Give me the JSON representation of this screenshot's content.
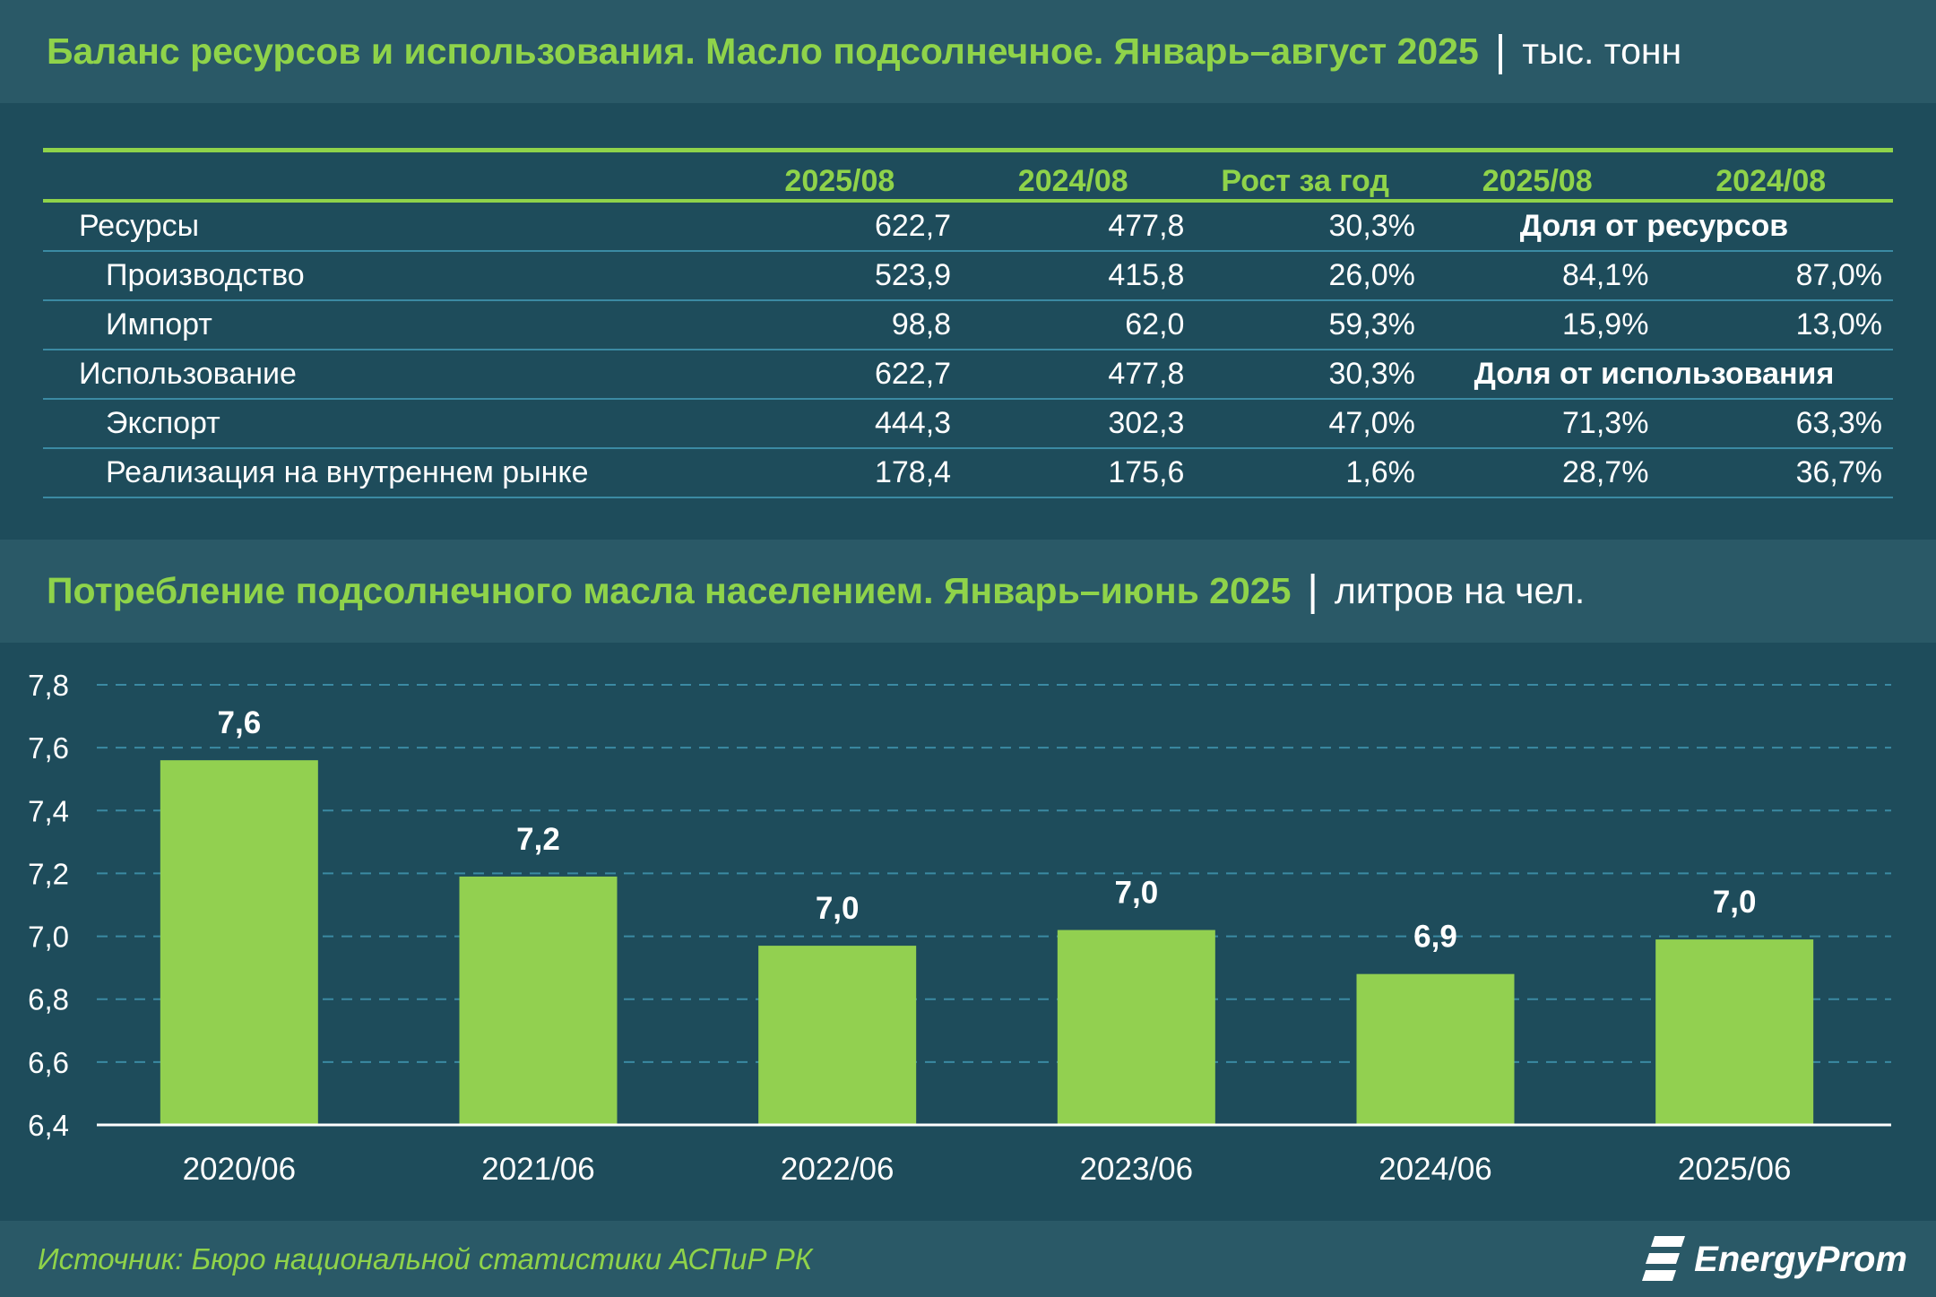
{
  "table_section": {
    "title": "Баланс ресурсов и использования. Масло подсолнечное. Январь–август 2025",
    "separator": "|",
    "unit": "тыс. тонн",
    "headers": [
      "",
      "2025/08",
      "2024/08",
      "Рост за год",
      "2025/08",
      "2024/08"
    ],
    "rows": [
      {
        "label": "Ресурсы",
        "level": 0,
        "v2025": "622,7",
        "v2024": "477,8",
        "growth": "30,3%",
        "share_header": "Доля от ресурсов"
      },
      {
        "label": "Производство",
        "level": 1,
        "v2025": "523,9",
        "v2024": "415,8",
        "growth": "26,0%",
        "share2025": "84,1%",
        "share2024": "87,0%"
      },
      {
        "label": "Импорт",
        "level": 1,
        "v2025": "98,8",
        "v2024": "62,0",
        "growth": "59,3%",
        "share2025": "15,9%",
        "share2024": "13,0%"
      },
      {
        "label": "Использование",
        "level": 0,
        "v2025": "622,7",
        "v2024": "477,8",
        "growth": "30,3%",
        "share_header": "Доля от использования"
      },
      {
        "label": "Экспорт",
        "level": 1,
        "v2025": "444,3",
        "v2024": "302,3",
        "growth": "47,0%",
        "share2025": "71,3%",
        "share2024": "63,3%"
      },
      {
        "label": "Реализация на внутреннем рынке",
        "level": 1,
        "v2025": "178,4",
        "v2024": "175,6",
        "growth": "1,6%",
        "share2025": "28,7%",
        "share2024": "36,7%"
      }
    ]
  },
  "chart_section": {
    "title": "Потребление подсолнечного масла населением. Январь–июнь 2025",
    "separator": "|",
    "unit": "литров на чел."
  },
  "chart_data": {
    "type": "bar",
    "categories": [
      "2020/06",
      "2021/06",
      "2022/06",
      "2023/06",
      "2024/06",
      "2025/06"
    ],
    "values": [
      7.56,
      7.19,
      6.97,
      7.02,
      6.88,
      6.99
    ],
    "data_labels": [
      "7,6",
      "7,2",
      "7,0",
      "7,0",
      "6,9",
      "7,0"
    ],
    "ylim": [
      6.4,
      7.8
    ],
    "yticks": [
      "6,4",
      "6,6",
      "6,8",
      "7,0",
      "7,2",
      "7,4",
      "7,6",
      "7,8"
    ],
    "ytick_values": [
      6.4,
      6.6,
      6.8,
      7.0,
      7.2,
      7.4,
      7.6,
      7.8
    ],
    "grid": true,
    "legend": "none",
    "bar_color": "#92d050",
    "label_color": "#ffffff",
    "grid_color": "#3b8aa3"
  },
  "footer": {
    "source": "Источник: Бюро национальной статистики АСПиР РК",
    "logo_text": "EnergyProm"
  },
  "colors": {
    "background": "#1e4c5b",
    "band": "#2a5967",
    "accent_green": "#8fd34a",
    "line_blue": "#3b8aa3"
  }
}
